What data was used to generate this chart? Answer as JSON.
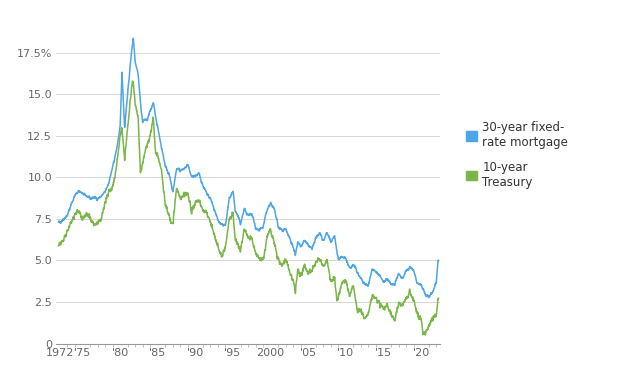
{
  "mortgage_color": "#4da6e8",
  "treasury_color": "#7ab648",
  "background_color": "#ffffff",
  "grid_color": "#d0d0d0",
  "yticks": [
    0,
    2.5,
    5.0,
    7.5,
    10.0,
    12.5,
    15.0,
    17.5
  ],
  "ytick_labels": [
    "0",
    "2.5",
    "5.0",
    "7.5",
    "10.0",
    "12.5",
    "15.0",
    "17.5%"
  ],
  "xtick_years": [
    1972,
    1975,
    1980,
    1985,
    1990,
    1995,
    2000,
    2005,
    2010,
    2015,
    2020
  ],
  "xtick_labels": [
    "1972",
    "'75",
    "'80",
    "'85",
    "'90",
    "'95",
    "2000",
    "'05",
    "'10",
    "'15",
    "'20"
  ],
  "legend_mortgage": "30-year fixed-\nrate mortgage",
  "legend_treasury": "10-year\nTreasury",
  "ylim": [
    0,
    19.5
  ],
  "xlim_start": 1971.5,
  "xlim_end": 2022.5
}
